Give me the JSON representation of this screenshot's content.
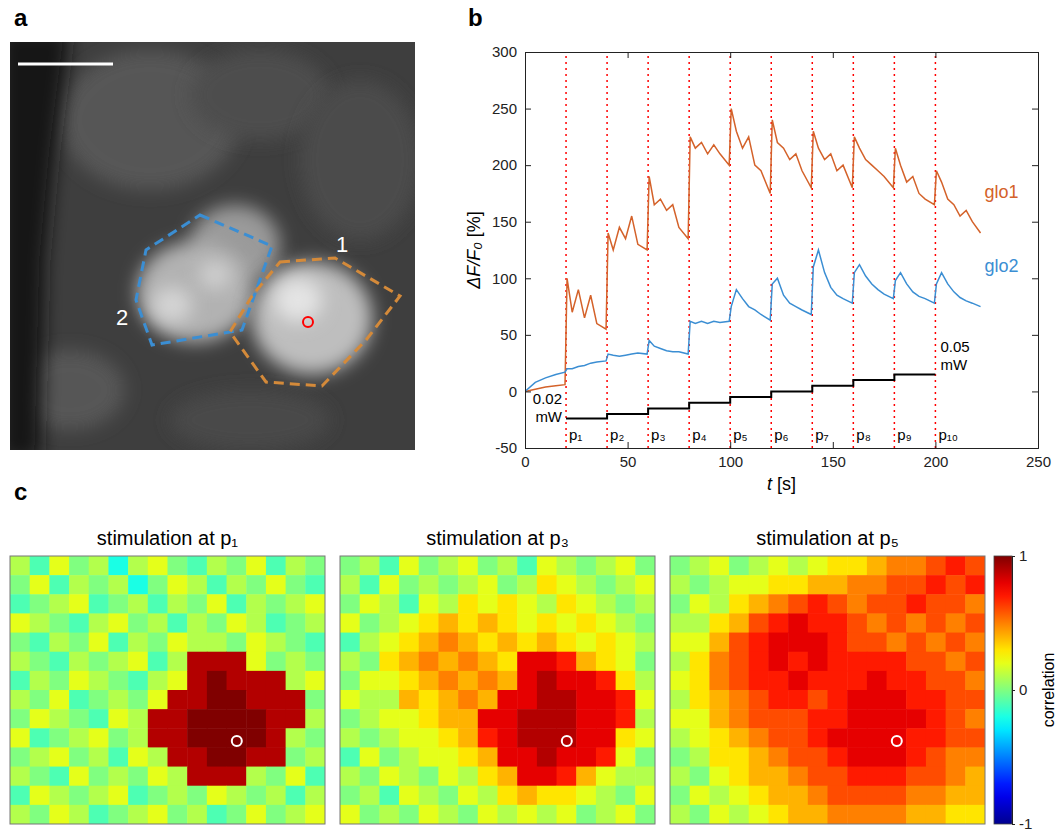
{
  "chart_data": [
    {
      "type": "image",
      "label": "a",
      "annotations": [
        {
          "text": "1"
        },
        {
          "text": "2"
        }
      ]
    },
    {
      "type": "line",
      "label": "b",
      "xlabel": "t [s]",
      "ylabel": "ΔF/F₀ [%]",
      "xlim": [
        0,
        250
      ],
      "xticks": [
        0,
        50,
        100,
        150,
        200,
        250
      ],
      "ylim": [
        -50,
        300
      ],
      "yticks": [
        -50,
        0,
        50,
        100,
        150,
        200,
        250,
        300
      ],
      "x": [
        0,
        5,
        10,
        15,
        19.5,
        20.5,
        23,
        26,
        29,
        32,
        35,
        39.5,
        40.5,
        43,
        46,
        49,
        52,
        55,
        59.5,
        60.5,
        63,
        66,
        69,
        72,
        75,
        79.5,
        80.5,
        83,
        86,
        89,
        92,
        95,
        99.5,
        100.5,
        103,
        106,
        109,
        112,
        115,
        119.5,
        120.5,
        123,
        126,
        129,
        132,
        135,
        139.5,
        140.5,
        143,
        146,
        149,
        152,
        155,
        159.5,
        160.5,
        163,
        166,
        169,
        172,
        175,
        179.5,
        180.5,
        183,
        186,
        189,
        192,
        195,
        199.5,
        200.5,
        203,
        206,
        209,
        212,
        215,
        218,
        222
      ],
      "series": [
        {
          "name": "glo1",
          "color": "#d4622a",
          "values": [
            0,
            2,
            4,
            5,
            6,
            100,
            70,
            90,
            65,
            85,
            60,
            55,
            140,
            125,
            145,
            135,
            155,
            130,
            125,
            190,
            165,
            170,
            160,
            165,
            145,
            135,
            225,
            215,
            220,
            210,
            218,
            210,
            200,
            250,
            230,
            215,
            225,
            200,
            195,
            175,
            240,
            220,
            215,
            205,
            210,
            195,
            180,
            230,
            215,
            205,
            210,
            195,
            200,
            180,
            225,
            215,
            205,
            200,
            195,
            190,
            180,
            215,
            200,
            185,
            190,
            175,
            170,
            165,
            195,
            185,
            170,
            165,
            155,
            160,
            150,
            140
          ]
        },
        {
          "name": "glo2",
          "color": "#3b8ed3",
          "values": [
            0,
            8,
            12,
            15,
            17,
            20,
            20,
            22,
            23,
            25,
            26,
            27,
            33,
            32,
            31,
            32,
            33,
            34,
            33,
            45,
            40,
            38,
            36,
            35,
            35,
            33,
            62,
            60,
            62,
            60,
            62,
            61,
            62,
            75,
            90,
            82,
            75,
            72,
            68,
            63,
            95,
            100,
            85,
            78,
            75,
            72,
            68,
            110,
            125,
            105,
            92,
            85,
            82,
            78,
            105,
            112,
            102,
            95,
            90,
            86,
            82,
            98,
            105,
            95,
            88,
            84,
            82,
            78,
            95,
            105,
            95,
            88,
            83,
            80,
            78,
            75
          ]
        },
        {
          "color": "#000000",
          "line_style": "step",
          "x": [
            20,
            40,
            60,
            80,
            100,
            120,
            140,
            160,
            180,
            200
          ],
          "values": [
            -24,
            -20,
            -15,
            -10,
            -5,
            0,
            5,
            10,
            15,
            15
          ]
        }
      ],
      "markers": {
        "x": [
          20,
          40,
          60,
          80,
          100,
          120,
          140,
          160,
          180,
          200
        ],
        "labels": [
          "p₁",
          "p₂",
          "p₃",
          "p₄",
          "p₅",
          "p₆",
          "p₇",
          "p₈",
          "p₉",
          "p₁₀"
        ],
        "color": "#ff0000",
        "line_style": "dotted"
      },
      "annotations": [
        {
          "text": "0.02 mW"
        },
        {
          "text": "0.05 mW"
        }
      ]
    },
    {
      "type": "heatmap",
      "label": "c",
      "zlim": [
        -1,
        1
      ],
      "zticks": [
        -1,
        0,
        1
      ],
      "colorbar_label": "correlation",
      "maps": [
        {
          "title": "stimulation at p₁",
          "cells": [
            [
              0.1,
              -0.1,
              0.2,
              0,
              0.1,
              -0.2,
              0.1,
              0.2,
              0,
              -0.1,
              0.1,
              0,
              0.2,
              -0.1,
              0.1,
              0
            ],
            [
              0,
              0.2,
              -0.1,
              0.1,
              0,
              0.1,
              -0.2,
              0,
              0.2,
              0.1,
              -0.1,
              0.1,
              0,
              0.2,
              0,
              -0.1
            ],
            [
              -0.1,
              0,
              0.1,
              0.2,
              -0.1,
              0,
              0.1,
              -0.1,
              0.1,
              0,
              0.2,
              -0.1,
              0.1,
              0,
              0.1,
              0.2
            ],
            [
              0.2,
              0.1,
              0,
              -0.1,
              0.1,
              0.2,
              0,
              0.1,
              -0.1,
              0.1,
              0,
              0.2,
              0.1,
              -0.1,
              0,
              0.1
            ],
            [
              0,
              -0.1,
              0.1,
              0,
              0.2,
              -0.1,
              0.1,
              0,
              0.2,
              0.1,
              0.1,
              0,
              0.2,
              0.1,
              0,
              -0.1
            ],
            [
              0.1,
              0,
              -0.1,
              0.1,
              0,
              0.1,
              0.2,
              -0.1,
              0.1,
              0.9,
              0.9,
              0.9,
              0.2,
              0,
              0.1,
              0
            ],
            [
              -0.1,
              0.1,
              0,
              0.2,
              0.1,
              0,
              -0.1,
              0.1,
              0.2,
              0.9,
              1,
              0.9,
              0.9,
              0.9,
              0.1,
              0.2
            ],
            [
              0.1,
              0,
              0.2,
              -0.1,
              0,
              0.1,
              0,
              0.2,
              0.9,
              0.9,
              1,
              1,
              0.9,
              0.9,
              0.9,
              0
            ],
            [
              0,
              0.2,
              0.1,
              0,
              -0.1,
              0.2,
              0.1,
              0.9,
              0.9,
              1,
              1,
              1,
              1,
              0.9,
              0.9,
              0.1
            ],
            [
              0.2,
              -0.1,
              0,
              0.1,
              0.2,
              0,
              0.1,
              0.9,
              0.9,
              1,
              1,
              1,
              1,
              0.9,
              0.1,
              0
            ],
            [
              0,
              0.1,
              0.2,
              0,
              0.1,
              -0.1,
              0.2,
              0.1,
              0.9,
              0.9,
              1,
              1,
              0.9,
              0.9,
              0,
              0.1
            ],
            [
              0.1,
              0,
              -0.1,
              0.2,
              0,
              0.1,
              0,
              0.2,
              0.1,
              0.9,
              0.9,
              0.9,
              0.1,
              0,
              0.2,
              -0.1
            ],
            [
              -0.1,
              0.2,
              0.1,
              0,
              0.1,
              0.2,
              -0.1,
              0,
              0.1,
              0,
              0.2,
              0.1,
              0,
              0.1,
              -0.1,
              0.1
            ],
            [
              0.1,
              0,
              0.2,
              0.1,
              -0.1,
              0,
              0.1,
              0.2,
              0,
              0.1,
              -0.1,
              0,
              0.2,
              0,
              0.1,
              0.2
            ]
          ]
        },
        {
          "title": "stimulation at p₃",
          "cells": [
            [
              0,
              0.1,
              -0.1,
              0.2,
              0,
              0.1,
              0.2,
              0,
              0.1,
              -0.1,
              0.2,
              0.1,
              0,
              0.1,
              0.2,
              0
            ],
            [
              0.1,
              -0.1,
              0.2,
              0,
              0.1,
              0,
              0.1,
              0.2,
              0,
              0.1,
              0.3,
              0.2,
              0.1,
              0,
              0.1,
              0.2
            ],
            [
              0,
              0.2,
              0.1,
              -0.1,
              0.2,
              0.1,
              0.3,
              0.2,
              0.3,
              0.2,
              0.1,
              0.3,
              0.2,
              0.1,
              0,
              0.1
            ],
            [
              0.2,
              0,
              0.1,
              0.2,
              0.3,
              0.4,
              0.3,
              0.4,
              0.3,
              0.2,
              0.3,
              0.2,
              0.3,
              0.2,
              0.1,
              0
            ],
            [
              -0.1,
              0.1,
              0.2,
              0.3,
              0.4,
              0.5,
              0.4,
              0.3,
              0.4,
              0.3,
              0.4,
              0.3,
              0.2,
              0.3,
              0.2,
              0.1
            ],
            [
              0.1,
              0,
              0.3,
              0.4,
              0.5,
              0.4,
              0.5,
              0.4,
              0.3,
              0.8,
              0.8,
              0.7,
              0.4,
              0.3,
              0.2,
              0
            ],
            [
              0,
              0.2,
              0.2,
              0.3,
              0.4,
              0.5,
              0.4,
              0.5,
              0.4,
              0.8,
              0.9,
              0.8,
              0.8,
              0.7,
              0.3,
              0.1
            ],
            [
              0.2,
              0.1,
              0.1,
              0.4,
              0.3,
              0.4,
              0.5,
              0.4,
              0.8,
              0.8,
              0.9,
              0.9,
              0.8,
              0.8,
              0.7,
              0.2
            ],
            [
              0,
              0.1,
              0.2,
              0.2,
              0.3,
              0.4,
              0.4,
              0.8,
              0.8,
              0.9,
              0.9,
              0.9,
              0.8,
              0.8,
              0.7,
              0.1
            ],
            [
              0.1,
              0,
              0.1,
              0.2,
              0.2,
              0.3,
              0.4,
              0.7,
              0.8,
              0.9,
              0.9,
              0.9,
              0.8,
              0.8,
              0.3,
              0.2
            ],
            [
              -0.1,
              0.2,
              0,
              0.1,
              0.2,
              0.2,
              0.3,
              0.4,
              0.8,
              0.8,
              0.9,
              0.8,
              0.8,
              0.7,
              0.2,
              0
            ],
            [
              0.1,
              0,
              0.2,
              0.1,
              0,
              0.2,
              0.1,
              0.3,
              0.4,
              0.8,
              0.8,
              0.7,
              0.4,
              0.2,
              0.1,
              0.1
            ],
            [
              0,
              0.1,
              -0.1,
              0.2,
              0.1,
              0,
              0.2,
              0.1,
              0.3,
              0.4,
              0.3,
              0.3,
              0.2,
              0.1,
              0,
              0.2
            ],
            [
              0.2,
              0,
              0.1,
              0,
              0.2,
              0.1,
              0,
              0.2,
              0.1,
              0.2,
              0.1,
              0.2,
              0,
              0.1,
              0.2,
              0
            ]
          ]
        },
        {
          "title": "stimulation at p₅",
          "cells": [
            [
              0,
              0.1,
              0.2,
              0,
              0.1,
              0.2,
              0.1,
              0.2,
              0.3,
              0.3,
              0.4,
              0.5,
              0.5,
              0.6,
              0.7,
              0.6
            ],
            [
              0.1,
              0,
              0.1,
              0.2,
              0.2,
              0.3,
              0.3,
              0.4,
              0.4,
              0.5,
              0.5,
              0.6,
              0.6,
              0.7,
              0.6,
              0.7
            ],
            [
              0,
              0.2,
              0.1,
              0.3,
              0.4,
              0.5,
              0.6,
              0.7,
              0.6,
              0.5,
              0.6,
              0.6,
              0.7,
              0.6,
              0.6,
              0.5
            ],
            [
              0.1,
              0.1,
              0.3,
              0.4,
              0.6,
              0.7,
              0.8,
              0.7,
              0.7,
              0.6,
              0.5,
              0.6,
              0.5,
              0.6,
              0.5,
              0.6
            ],
            [
              0.2,
              0.2,
              0.4,
              0.6,
              0.7,
              0.8,
              0.8,
              0.8,
              0.7,
              0.6,
              0.6,
              0.5,
              0.6,
              0.5,
              0.6,
              0.5
            ],
            [
              0.1,
              0.3,
              0.5,
              0.6,
              0.7,
              0.8,
              0.7,
              0.8,
              0.7,
              0.7,
              0.7,
              0.7,
              0.6,
              0.6,
              0.5,
              0.6
            ],
            [
              0.2,
              0.3,
              0.5,
              0.6,
              0.7,
              0.7,
              0.8,
              0.7,
              0.7,
              0.7,
              0.8,
              0.7,
              0.7,
              0.6,
              0.6,
              0.5
            ],
            [
              0.1,
              0.3,
              0.4,
              0.5,
              0.6,
              0.7,
              0.7,
              0.6,
              0.7,
              0.8,
              0.8,
              0.8,
              0.7,
              0.7,
              0.6,
              0.6
            ],
            [
              0.2,
              0.2,
              0.4,
              0.5,
              0.6,
              0.6,
              0.6,
              0.7,
              0.7,
              0.8,
              0.8,
              0.8,
              0.8,
              0.7,
              0.6,
              0.5
            ],
            [
              0.1,
              0.2,
              0.3,
              0.4,
              0.5,
              0.6,
              0.6,
              0.7,
              0.8,
              0.8,
              0.8,
              0.8,
              0.7,
              0.7,
              0.6,
              0.6
            ],
            [
              0,
              0.1,
              0.3,
              0.3,
              0.4,
              0.5,
              0.6,
              0.6,
              0.7,
              0.8,
              0.8,
              0.8,
              0.7,
              0.6,
              0.5,
              0.5
            ],
            [
              0.1,
              0,
              0.2,
              0.3,
              0.4,
              0.4,
              0.5,
              0.6,
              0.6,
              0.7,
              0.7,
              0.7,
              0.6,
              0.6,
              0.5,
              0.4
            ],
            [
              0,
              0.2,
              0.1,
              0.2,
              0.3,
              0.4,
              0.4,
              0.5,
              0.6,
              0.6,
              0.6,
              0.6,
              0.5,
              0.5,
              0.4,
              0.4
            ],
            [
              0.1,
              0,
              0.2,
              0.1,
              0.2,
              0.3,
              0.4,
              0.4,
              0.5,
              0.5,
              0.5,
              0.5,
              0.4,
              0.4,
              0.3,
              0.3
            ]
          ]
        }
      ]
    }
  ]
}
